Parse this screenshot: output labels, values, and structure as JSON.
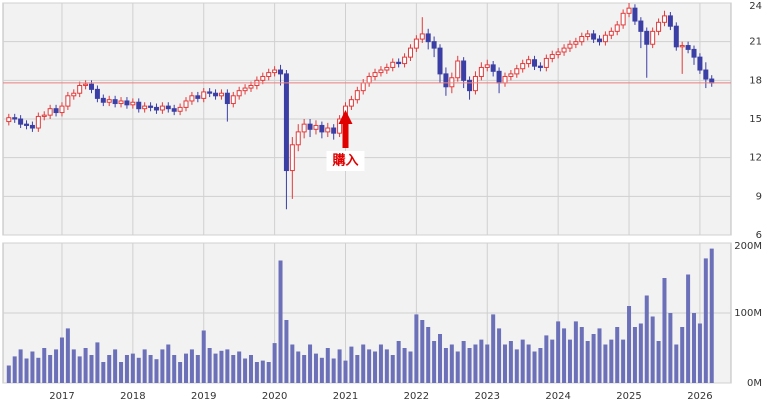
{
  "chart_data": [
    {
      "type": "candlestick",
      "up_color": "#e23b3b",
      "down_color": "#3b3fa5",
      "grid": true,
      "ylim": [
        6,
        24
      ],
      "yticks": [
        6,
        9,
        12,
        15,
        18,
        21,
        24
      ],
      "reference_line": 17.8,
      "reference_color": "#e88080",
      "annotation": "購入",
      "annotation_color": "#e00000",
      "open": [
        14.8,
        15.1,
        15.0,
        14.6,
        14.5,
        14.3,
        15.2,
        15.3,
        15.8,
        15.5,
        16.0,
        16.8,
        17.0,
        17.6,
        17.7,
        17.3,
        16.6,
        16.3,
        16.5,
        16.2,
        16.4,
        16.1,
        16.3,
        15.8,
        16.0,
        15.9,
        15.7,
        16.0,
        15.8,
        15.6,
        15.9,
        16.4,
        16.8,
        16.6,
        17.1,
        17.0,
        16.8,
        17.0,
        16.2,
        16.8,
        17.2,
        17.4,
        17.6,
        18.0,
        18.3,
        18.6,
        18.8,
        18.5,
        11.0,
        13.0,
        14.0,
        14.6,
        14.2,
        14.5,
        14.0,
        14.3,
        13.9,
        15.0,
        16.0,
        16.5,
        17.2,
        17.8,
        18.3,
        18.6,
        18.8,
        19.0,
        19.4,
        19.3,
        19.8,
        20.5,
        21.2,
        21.6,
        21.0,
        20.5,
        18.5,
        17.5,
        18.2,
        19.5,
        18.0,
        17.2,
        18.3,
        19.0,
        19.2,
        18.7,
        17.8,
        18.3,
        18.5,
        18.9,
        19.3,
        19.6,
        19.1,
        19.0,
        19.7,
        20.0,
        20.2,
        20.5,
        20.8,
        21.0,
        21.4,
        21.6,
        21.2,
        21.0,
        21.5,
        21.8,
        22.3,
        23.2,
        23.6,
        22.6,
        21.8,
        20.8,
        21.8,
        22.5,
        23.0,
        22.2,
        20.6,
        20.7,
        20.4,
        19.8,
        18.8,
        18.1
      ],
      "high": [
        15.4,
        15.4,
        15.3,
        14.9,
        14.8,
        15.5,
        15.6,
        16.1,
        16.1,
        16.3,
        17.1,
        17.3,
        17.9,
        18.0,
        18.0,
        17.6,
        16.9,
        16.8,
        16.8,
        16.7,
        16.7,
        16.6,
        16.6,
        16.3,
        16.3,
        16.2,
        16.3,
        16.3,
        16.1,
        16.2,
        16.7,
        17.1,
        17.1,
        17.4,
        17.4,
        17.3,
        17.3,
        17.3,
        17.1,
        17.5,
        17.7,
        17.9,
        18.3,
        18.6,
        18.9,
        19.1,
        19.2,
        18.8,
        13.6,
        14.6,
        15.0,
        15.0,
        14.9,
        14.8,
        14.7,
        14.6,
        15.3,
        16.3,
        16.8,
        17.5,
        18.1,
        18.6,
        18.9,
        19.1,
        19.3,
        19.7,
        19.7,
        20.1,
        20.8,
        21.5,
        22.9,
        22.0,
        21.4,
        20.8,
        19.0,
        18.6,
        19.9,
        19.8,
        18.3,
        18.7,
        19.4,
        19.6,
        19.5,
        19.0,
        18.6,
        18.8,
        19.2,
        19.6,
        19.9,
        19.9,
        19.4,
        20.0,
        20.3,
        20.5,
        20.8,
        21.1,
        21.3,
        21.7,
        21.9,
        21.9,
        21.5,
        21.8,
        22.1,
        22.6,
        23.5,
        24.0,
        23.9,
        22.9,
        22.1,
        22.1,
        22.8,
        23.4,
        23.3,
        22.5,
        21.0,
        21.0,
        20.7,
        20.1,
        19.4,
        18.4
      ],
      "low": [
        14.5,
        14.7,
        14.3,
        14.2,
        14.0,
        14.0,
        14.9,
        15.0,
        15.2,
        15.2,
        15.7,
        16.5,
        16.7,
        17.3,
        17.0,
        16.3,
        16.0,
        16.0,
        15.9,
        15.9,
        15.8,
        15.8,
        15.5,
        15.5,
        15.6,
        15.4,
        15.4,
        15.5,
        15.3,
        15.3,
        15.6,
        16.1,
        16.3,
        16.3,
        16.7,
        16.5,
        16.5,
        14.8,
        15.9,
        16.5,
        16.9,
        17.1,
        17.3,
        17.7,
        18.0,
        18.3,
        17.6,
        8.0,
        8.8,
        12.5,
        13.5,
        13.6,
        13.8,
        13.5,
        13.6,
        13.4,
        13.6,
        14.7,
        15.7,
        16.2,
        16.9,
        17.5,
        18.0,
        18.3,
        18.5,
        18.7,
        19.0,
        19.0,
        19.5,
        20.2,
        20.9,
        20.4,
        19.8,
        17.8,
        16.8,
        17.0,
        17.9,
        17.4,
        16.5,
        16.9,
        18.0,
        18.7,
        18.3,
        17.0,
        17.5,
        18.0,
        18.2,
        18.6,
        19.0,
        18.8,
        18.7,
        18.7,
        19.4,
        19.7,
        19.9,
        20.2,
        20.5,
        20.7,
        21.1,
        20.9,
        20.7,
        20.7,
        21.2,
        21.5,
        22.0,
        22.9,
        22.3,
        20.5,
        18.2,
        20.5,
        21.5,
        22.2,
        21.9,
        20.3,
        18.5,
        20.1,
        19.2,
        18.5,
        17.4,
        17.5
      ],
      "close": [
        15.1,
        15.0,
        14.6,
        14.5,
        14.3,
        15.2,
        15.3,
        15.8,
        15.5,
        16.0,
        16.8,
        17.0,
        17.6,
        17.7,
        17.3,
        16.6,
        16.3,
        16.5,
        16.2,
        16.4,
        16.1,
        16.3,
        15.8,
        16.0,
        15.9,
        15.7,
        16.0,
        15.8,
        15.6,
        15.9,
        16.4,
        16.8,
        16.6,
        17.1,
        17.0,
        16.8,
        17.0,
        16.2,
        16.8,
        17.2,
        17.4,
        17.6,
        18.0,
        18.3,
        18.6,
        18.8,
        18.5,
        11.0,
        13.0,
        14.0,
        14.6,
        14.2,
        14.5,
        14.0,
        14.3,
        13.9,
        15.0,
        16.0,
        16.5,
        17.2,
        17.8,
        18.3,
        18.6,
        18.8,
        19.0,
        19.4,
        19.3,
        19.8,
        20.5,
        21.2,
        21.6,
        21.0,
        20.5,
        18.5,
        17.5,
        18.2,
        19.5,
        18.0,
        17.2,
        18.3,
        19.0,
        19.2,
        18.7,
        17.8,
        18.3,
        18.5,
        18.9,
        19.3,
        19.6,
        19.1,
        19.0,
        19.7,
        20.0,
        20.2,
        20.5,
        20.8,
        21.0,
        21.4,
        21.6,
        21.2,
        21.0,
        21.5,
        21.8,
        22.3,
        23.2,
        23.6,
        22.6,
        21.8,
        20.8,
        21.8,
        22.5,
        23.0,
        22.2,
        20.6,
        20.7,
        20.4,
        19.8,
        18.8,
        18.1,
        17.8
      ]
    },
    {
      "type": "bar",
      "color": "#6b70b8",
      "grid": true,
      "ylim": [
        0,
        200000000
      ],
      "yticks": [
        {
          "value": 0,
          "label": "0M"
        },
        {
          "value": 100000000,
          "label": "100M"
        },
        {
          "value": 200000000,
          "label": "200M"
        }
      ],
      "categories": [
        null,
        null,
        null,
        null,
        null,
        null,
        null,
        null,
        null,
        "2017",
        null,
        null,
        null,
        null,
        null,
        null,
        null,
        null,
        null,
        null,
        null,
        "2018",
        null,
        null,
        null,
        null,
        null,
        null,
        null,
        null,
        null,
        null,
        null,
        "2019",
        null,
        null,
        null,
        null,
        null,
        null,
        null,
        null,
        null,
        null,
        null,
        "2020",
        null,
        null,
        null,
        null,
        null,
        null,
        null,
        null,
        null,
        null,
        null,
        "2021",
        null,
        null,
        null,
        null,
        null,
        null,
        null,
        null,
        null,
        null,
        null,
        "2022",
        null,
        null,
        null,
        null,
        null,
        null,
        null,
        null,
        null,
        null,
        null,
        "2023",
        null,
        null,
        null,
        null,
        null,
        null,
        null,
        null,
        null,
        null,
        null,
        "2024",
        null,
        null,
        null,
        null,
        null,
        null,
        null,
        null,
        null,
        null,
        null,
        "2025",
        null,
        null,
        null,
        null,
        null,
        null,
        null,
        null,
        null,
        null,
        null,
        "2026",
        null,
        null
      ],
      "values": [
        25000000,
        38000000,
        48000000,
        35000000,
        45000000,
        36000000,
        50000000,
        40000000,
        48000000,
        65000000,
        78000000,
        48000000,
        38000000,
        50000000,
        40000000,
        58000000,
        30000000,
        40000000,
        48000000,
        30000000,
        40000000,
        42000000,
        36000000,
        48000000,
        40000000,
        34000000,
        48000000,
        55000000,
        40000000,
        30000000,
        42000000,
        48000000,
        40000000,
        75000000,
        50000000,
        42000000,
        46000000,
        48000000,
        40000000,
        45000000,
        35000000,
        40000000,
        30000000,
        32000000,
        30000000,
        57000000,
        175000000,
        90000000,
        55000000,
        45000000,
        40000000,
        55000000,
        42000000,
        36000000,
        50000000,
        35000000,
        48000000,
        32000000,
        52000000,
        40000000,
        55000000,
        48000000,
        45000000,
        55000000,
        48000000,
        40000000,
        60000000,
        50000000,
        45000000,
        98000000,
        90000000,
        80000000,
        60000000,
        70000000,
        50000000,
        55000000,
        45000000,
        60000000,
        50000000,
        55000000,
        62000000,
        55000000,
        98000000,
        78000000,
        55000000,
        60000000,
        48000000,
        62000000,
        55000000,
        45000000,
        50000000,
        68000000,
        62000000,
        88000000,
        78000000,
        62000000,
        88000000,
        80000000,
        60000000,
        70000000,
        78000000,
        55000000,
        62000000,
        80000000,
        62000000,
        110000000,
        80000000,
        85000000,
        125000000,
        95000000,
        60000000,
        150000000,
        100000000,
        55000000,
        80000000,
        155000000,
        100000000,
        85000000,
        178000000,
        192000000
      ]
    }
  ]
}
